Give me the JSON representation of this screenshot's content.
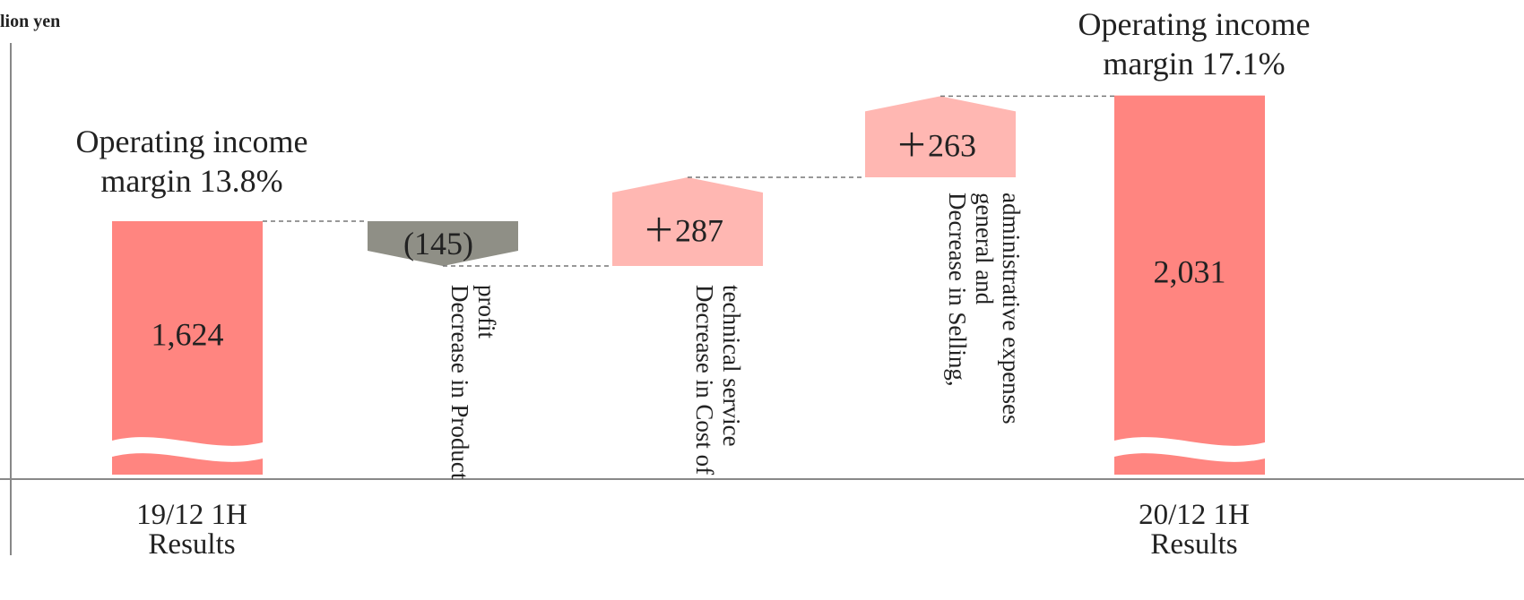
{
  "chart_data": {
    "type": "bar",
    "subtype": "waterfall",
    "unit_label": "lion yen",
    "categories": [
      "19/12 1H Results",
      "Decrease in Product profit",
      "Decrease in Cost of technical service",
      "Decrease in Selling, general and administrative expenses",
      "20/12 1H Results"
    ],
    "steps": [
      {
        "kind": "total",
        "value": 1624,
        "label": "1,624",
        "category_lines": [
          "19/12 1H",
          "Results"
        ],
        "note_lines": [
          "Operating  income",
          "margin 13.8%"
        ]
      },
      {
        "kind": "delta",
        "value": -145,
        "label": "(145)",
        "category_lines": [
          "Decrease in Product",
          "profit"
        ]
      },
      {
        "kind": "delta",
        "value": 287,
        "label": "＋287",
        "category_lines": [
          "Decrease in Cost of",
          "technical service"
        ]
      },
      {
        "kind": "delta",
        "value": 263,
        "label": "＋263",
        "category_lines": [
          "Decrease in Selling,",
          "general and",
          "administrative expenses"
        ]
      },
      {
        "kind": "total",
        "value": 2031,
        "label": "2,031",
        "category_lines": [
          "20/12 1H",
          "Results"
        ],
        "note_lines": [
          "Operating  income",
          "margin 17.1%"
        ]
      }
    ],
    "axis_break": true,
    "colors": {
      "total": "#ff8580",
      "increase": "#ffb7b2",
      "decrease": "#8f8f86",
      "connector": "#777777",
      "axis": "#888888"
    }
  }
}
